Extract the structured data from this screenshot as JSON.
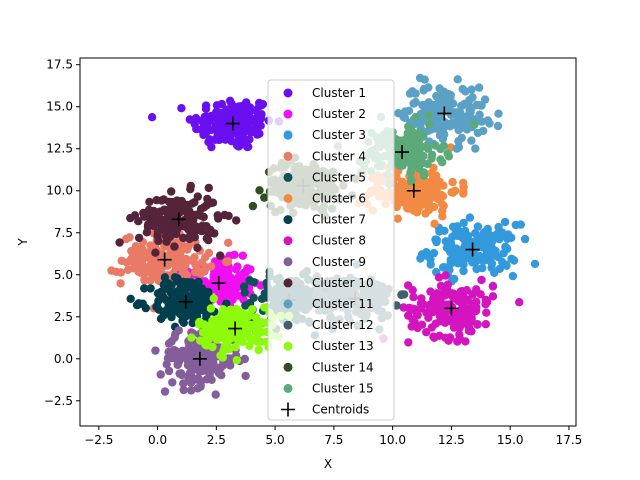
{
  "chart_data": {
    "type": "scatter",
    "title": "",
    "xlabel": "X",
    "ylabel": "Y",
    "xlim": [
      -3.3,
      17.8
    ],
    "ylim": [
      -4.0,
      17.9
    ],
    "xticks": [
      -2.5,
      0.0,
      2.5,
      5.0,
      7.5,
      10.0,
      12.5,
      15.0,
      17.5
    ],
    "xtick_labels": [
      "−2.5",
      "0.0",
      "2.5",
      "5.0",
      "7.5",
      "10.0",
      "12.5",
      "15.0",
      "17.5"
    ],
    "yticks": [
      -2.5,
      0.0,
      2.5,
      5.0,
      7.5,
      10.0,
      12.5,
      15.0,
      17.5
    ],
    "ytick_labels": [
      "−2.5",
      "0.0",
      "2.5",
      "5.0",
      "7.5",
      "10.0",
      "12.5",
      "15.0",
      "17.5"
    ],
    "grid": false,
    "legend_position": "center",
    "series": [
      {
        "name": "Cluster 1",
        "color": "#6a0ff0",
        "center": [
          3.2,
          14.0
        ],
        "spread": [
          0.85,
          0.8
        ]
      },
      {
        "name": "Cluster 2",
        "color": "#f00ff0",
        "center": [
          2.6,
          4.5
        ],
        "spread": [
          0.75,
          0.7
        ]
      },
      {
        "name": "Cluster 3",
        "color": "#3399dd",
        "center": [
          13.4,
          6.5
        ],
        "spread": [
          0.95,
          0.75
        ]
      },
      {
        "name": "Cluster 4",
        "color": "#e87a66",
        "center": [
          0.3,
          5.9
        ],
        "spread": [
          0.9,
          0.75
        ]
      },
      {
        "name": "Cluster 5",
        "color": "#0f4f5a",
        "center": [
          5.6,
          3.5
        ],
        "spread": [
          0.8,
          0.7
        ]
      },
      {
        "name": "Cluster 6",
        "color": "#f28a44",
        "center": [
          10.9,
          10.0
        ],
        "spread": [
          0.95,
          0.75
        ]
      },
      {
        "name": "Cluster 7",
        "color": "#013f4f",
        "center": [
          1.2,
          3.4
        ],
        "spread": [
          0.75,
          0.7
        ]
      },
      {
        "name": "Cluster 8",
        "color": "#d414bf",
        "center": [
          12.5,
          3.0
        ],
        "spread": [
          0.9,
          0.85
        ]
      },
      {
        "name": "Cluster 9",
        "color": "#835e9b",
        "center": [
          1.8,
          0.0
        ],
        "spread": [
          0.85,
          0.8
        ]
      },
      {
        "name": "Cluster 10",
        "color": "#55233a",
        "center": [
          0.9,
          8.3
        ],
        "spread": [
          0.85,
          0.75
        ]
      },
      {
        "name": "Cluster 11",
        "color": "#5ba1c5",
        "center": [
          12.2,
          14.6
        ],
        "spread": [
          0.9,
          0.85
        ]
      },
      {
        "name": "Cluster 12",
        "color": "#3e5f6e",
        "center": [
          8.4,
          3.6
        ],
        "spread": [
          0.8,
          0.7
        ]
      },
      {
        "name": "Cluster 13",
        "color": "#8cfa0a",
        "center": [
          3.3,
          1.8
        ],
        "spread": [
          0.8,
          0.65
        ]
      },
      {
        "name": "Cluster 14",
        "color": "#2f4f1f",
        "center": [
          6.2,
          10.3
        ],
        "spread": [
          0.8,
          0.7
        ]
      },
      {
        "name": "Cluster 15",
        "color": "#5caa7a",
        "center": [
          10.4,
          12.3
        ],
        "spread": [
          0.85,
          0.75
        ]
      }
    ],
    "centroids": {
      "name": "Centroids",
      "marker": "+",
      "color": "#000000",
      "x": [
        3.2,
        2.6,
        13.4,
        0.3,
        5.6,
        10.9,
        1.2,
        12.5,
        1.8,
        0.9,
        12.2,
        8.4,
        3.3,
        6.2,
        10.4
      ],
      "y": [
        14.0,
        4.5,
        6.5,
        5.9,
        3.5,
        10.0,
        3.4,
        3.0,
        0.0,
        8.3,
        14.6,
        3.6,
        1.8,
        10.3,
        12.3
      ]
    },
    "points_per_cluster": 160
  }
}
